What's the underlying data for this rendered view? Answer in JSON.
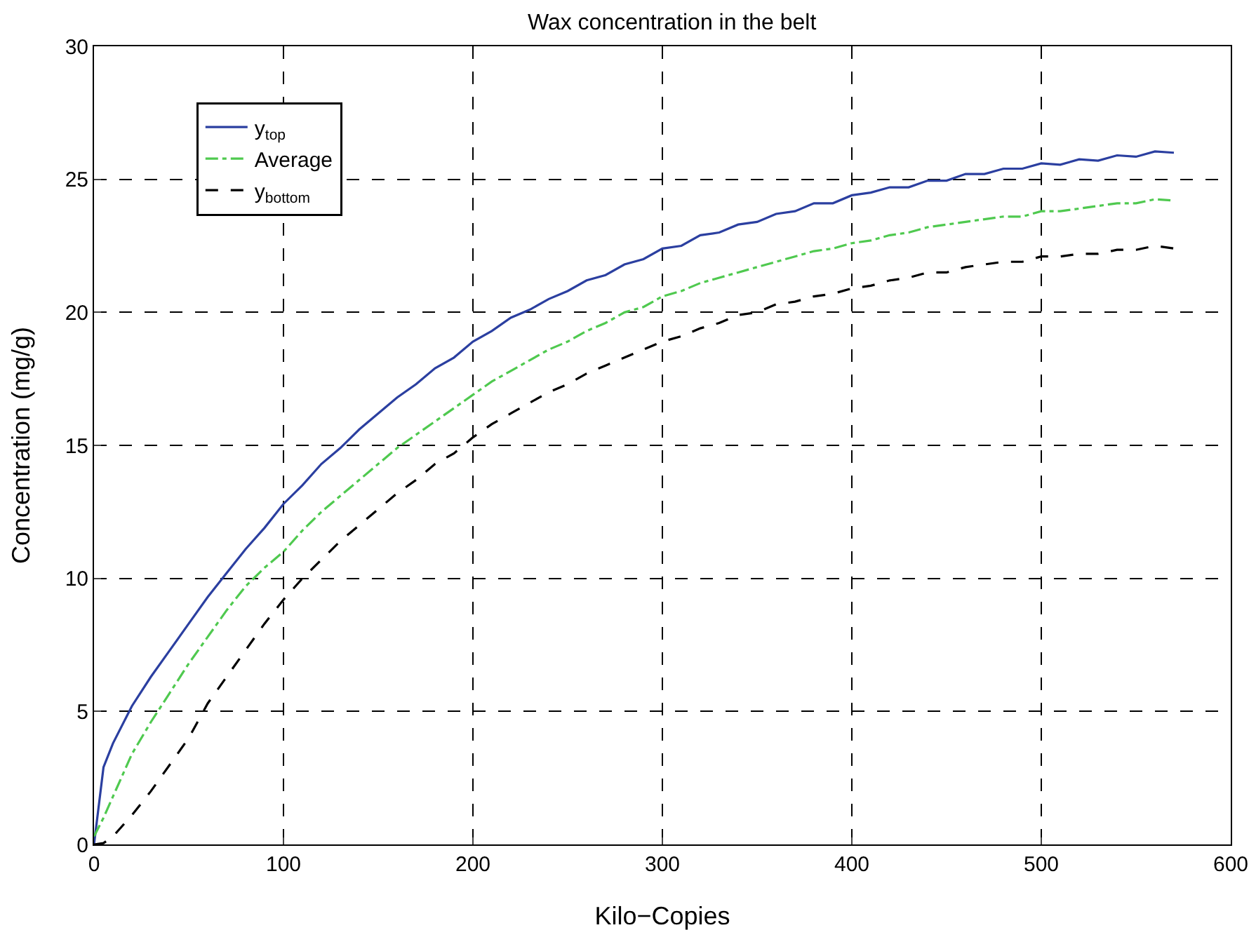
{
  "chart_data": {
    "type": "line",
    "title": "Wax concentration in the belt",
    "xlabel": "Kilo−Copies",
    "ylabel": "Concentration (mg/g)",
    "x": [
      0,
      5,
      10,
      20,
      30,
      40,
      50,
      60,
      70,
      80,
      90,
      100,
      110,
      120,
      130,
      140,
      150,
      160,
      170,
      180,
      190,
      200,
      210,
      220,
      230,
      240,
      250,
      260,
      270,
      280,
      290,
      300,
      310,
      320,
      330,
      340,
      350,
      360,
      370,
      380,
      390,
      400,
      410,
      420,
      430,
      440,
      450,
      460,
      470,
      480,
      490,
      500,
      510,
      520,
      530,
      540,
      550,
      560,
      570
    ],
    "series": [
      {
        "name": "y$_{top}$",
        "color": "#2b3fa0",
        "line_style": "solid",
        "values": [
          0,
          2.9,
          3.8,
          5.2,
          6.3,
          7.3,
          8.3,
          9.3,
          10.2,
          11.1,
          11.9,
          12.8,
          13.5,
          14.3,
          14.9,
          15.6,
          16.2,
          16.8,
          17.3,
          17.9,
          18.3,
          18.9,
          19.3,
          19.8,
          20.1,
          20.5,
          20.8,
          21.2,
          21.4,
          21.8,
          22.0,
          22.4,
          22.5,
          22.9,
          23.0,
          23.3,
          23.4,
          23.7,
          23.8,
          24.1,
          24.1,
          24.4,
          24.5,
          24.7,
          24.7,
          24.95,
          24.95,
          25.2,
          25.2,
          25.4,
          25.4,
          25.6,
          25.55,
          25.75,
          25.7,
          25.9,
          25.85,
          26.05,
          26.0
        ]
      },
      {
        "name": "Average",
        "color": "#4fc94f",
        "line_style": "dashdot",
        "values": [
          0.3,
          1.0,
          1.8,
          3.4,
          4.6,
          5.7,
          6.8,
          7.8,
          8.8,
          9.7,
          10.4,
          11.0,
          11.8,
          12.5,
          13.1,
          13.7,
          14.3,
          14.9,
          15.4,
          15.9,
          16.4,
          16.9,
          17.4,
          17.8,
          18.2,
          18.6,
          18.9,
          19.3,
          19.6,
          20.0,
          20.2,
          20.6,
          20.8,
          21.1,
          21.3,
          21.5,
          21.7,
          21.9,
          22.1,
          22.3,
          22.4,
          22.6,
          22.7,
          22.9,
          23.0,
          23.2,
          23.3,
          23.4,
          23.5,
          23.6,
          23.6,
          23.8,
          23.8,
          23.9,
          24.0,
          24.1,
          24.1,
          24.25,
          24.2
        ]
      },
      {
        "name": "y$_{bottom}$",
        "color": "#000000",
        "line_style": "dashed",
        "values": [
          0,
          0.05,
          0.3,
          1.1,
          2.0,
          3.0,
          4.0,
          5.3,
          6.3,
          7.3,
          8.3,
          9.2,
          10.0,
          10.7,
          11.4,
          12.0,
          12.6,
          13.2,
          13.7,
          14.3,
          14.7,
          15.3,
          15.8,
          16.2,
          16.6,
          17.0,
          17.3,
          17.7,
          18.0,
          18.3,
          18.6,
          18.9,
          19.1,
          19.4,
          19.6,
          19.9,
          20.0,
          20.3,
          20.4,
          20.6,
          20.7,
          20.9,
          21.0,
          21.2,
          21.3,
          21.5,
          21.5,
          21.7,
          21.8,
          21.9,
          21.9,
          22.1,
          22.1,
          22.2,
          22.2,
          22.35,
          22.35,
          22.5,
          22.4
        ]
      }
    ],
    "xlim": [
      0,
      600
    ],
    "xticks": [
      0,
      100,
      200,
      300,
      400,
      500,
      600
    ],
    "ylim": [
      0,
      30
    ],
    "yticks": [
      0,
      5,
      10,
      15,
      20,
      25,
      30
    ],
    "grid": true,
    "legend": "top left",
    "marker": "none"
  }
}
